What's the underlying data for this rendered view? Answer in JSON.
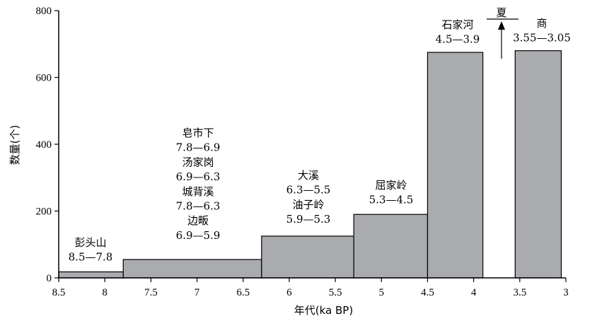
{
  "chart_data": {
    "type": "bar",
    "xlabel": "年代(ka BP)",
    "ylabel": "数量(个)",
    "xlim": [
      8.5,
      3
    ],
    "ylim": [
      0,
      800
    ],
    "x_ticks": [
      "8.5",
      "8",
      "7.5",
      "7",
      "6.5",
      "6",
      "5.5",
      "5",
      "4.5",
      "4",
      "3.5",
      "3"
    ],
    "y_ticks": [
      "0",
      "200",
      "400",
      "600",
      "800"
    ],
    "bars": [
      {
        "start": 8.5,
        "end": 7.8,
        "value": 18
      },
      {
        "start": 7.8,
        "end": 6.3,
        "value": 55
      },
      {
        "start": 6.3,
        "end": 5.3,
        "value": 125
      },
      {
        "start": 5.3,
        "end": 4.5,
        "value": 190
      },
      {
        "start": 4.5,
        "end": 3.9,
        "value": 675
      },
      {
        "start": 3.55,
        "end": 3.05,
        "value": 680
      }
    ],
    "annotations": [
      {
        "lines": [
          "彭头山",
          "8.5—7.8"
        ]
      },
      {
        "lines": [
          "皂市下",
          "7.8—6.9",
          "汤家岗",
          "6.9—6.3",
          "城背溪",
          "7.8—6.3",
          "边畈",
          "6.9—5.9"
        ]
      },
      {
        "lines": [
          "大溪",
          "6.3—5.5",
          "油子岭",
          "5.9—5.3"
        ]
      },
      {
        "lines": [
          "屈家岭",
          "5.3—4.5"
        ]
      },
      {
        "lines": [
          "石家河",
          "4.5—3.9"
        ]
      },
      {
        "lines": [
          "商",
          "3.55—3.05"
        ]
      }
    ],
    "xia_label": "夏"
  }
}
